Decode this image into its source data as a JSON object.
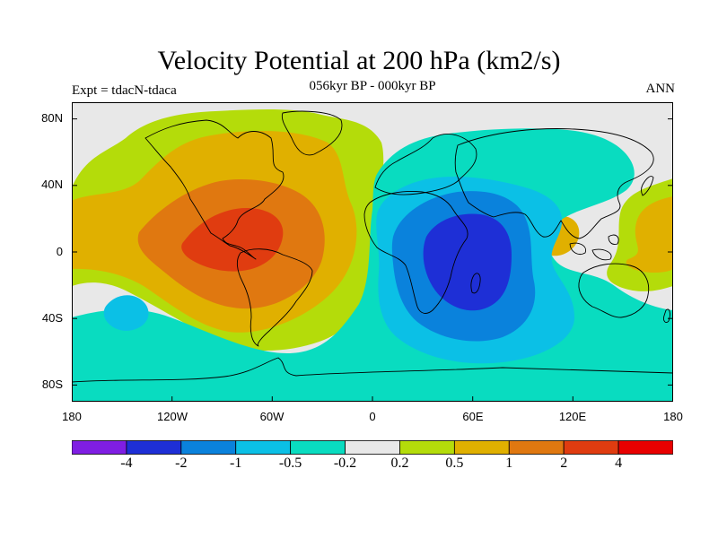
{
  "figure": {
    "title": "Velocity Potential at 200 hPa (km2/s)",
    "subtitle": "056kyr BP - 000kyr BP",
    "left_label": "Expt = tdacN-tdaca",
    "right_label": "ANN"
  },
  "axes": {
    "lat_ticks": [
      "80N",
      "40N",
      "0",
      "40S",
      "80S"
    ],
    "lon_ticks": [
      "180",
      "120W",
      "60W",
      "0",
      "60E",
      "120E",
      "180"
    ]
  },
  "colorbar": {
    "colors": [
      "#7f1ee3",
      "#1e2fd6",
      "#0a82dc",
      "#0bc0e6",
      "#09dcc0",
      "#e8e8e8",
      "#b4dc0a",
      "#e0b000",
      "#e07810",
      "#e03c10",
      "#e80000"
    ],
    "labels": [
      "-4",
      "-2",
      "-1",
      "-0.5",
      "-0.2",
      "0.2",
      "0.5",
      "1",
      "2",
      "4"
    ]
  },
  "chart_data": {
    "type": "heatmap",
    "title": "Velocity Potential at 200 hPa (km2/s)",
    "subtitle": "056kyr BP - 000kyr BP",
    "units": "km2/s",
    "x_range_deg": [
      -180,
      180
    ],
    "y_range_deg": [
      -90,
      90
    ],
    "levels": [
      -4,
      -2,
      -1,
      -0.5,
      -0.2,
      0.2,
      0.5,
      1,
      2,
      4
    ],
    "features": [
      {
        "name": "positive maximum",
        "lon": -100,
        "lat": 5,
        "level": 4
      },
      {
        "name": "negative minimum",
        "lon": 55,
        "lat": -10,
        "level": -4
      },
      {
        "name": "negative lobe",
        "lon": -140,
        "lat": -35,
        "level": -0.5
      },
      {
        "name": "positive lobe",
        "lon": 125,
        "lat": 0,
        "level": 0.5
      }
    ]
  }
}
